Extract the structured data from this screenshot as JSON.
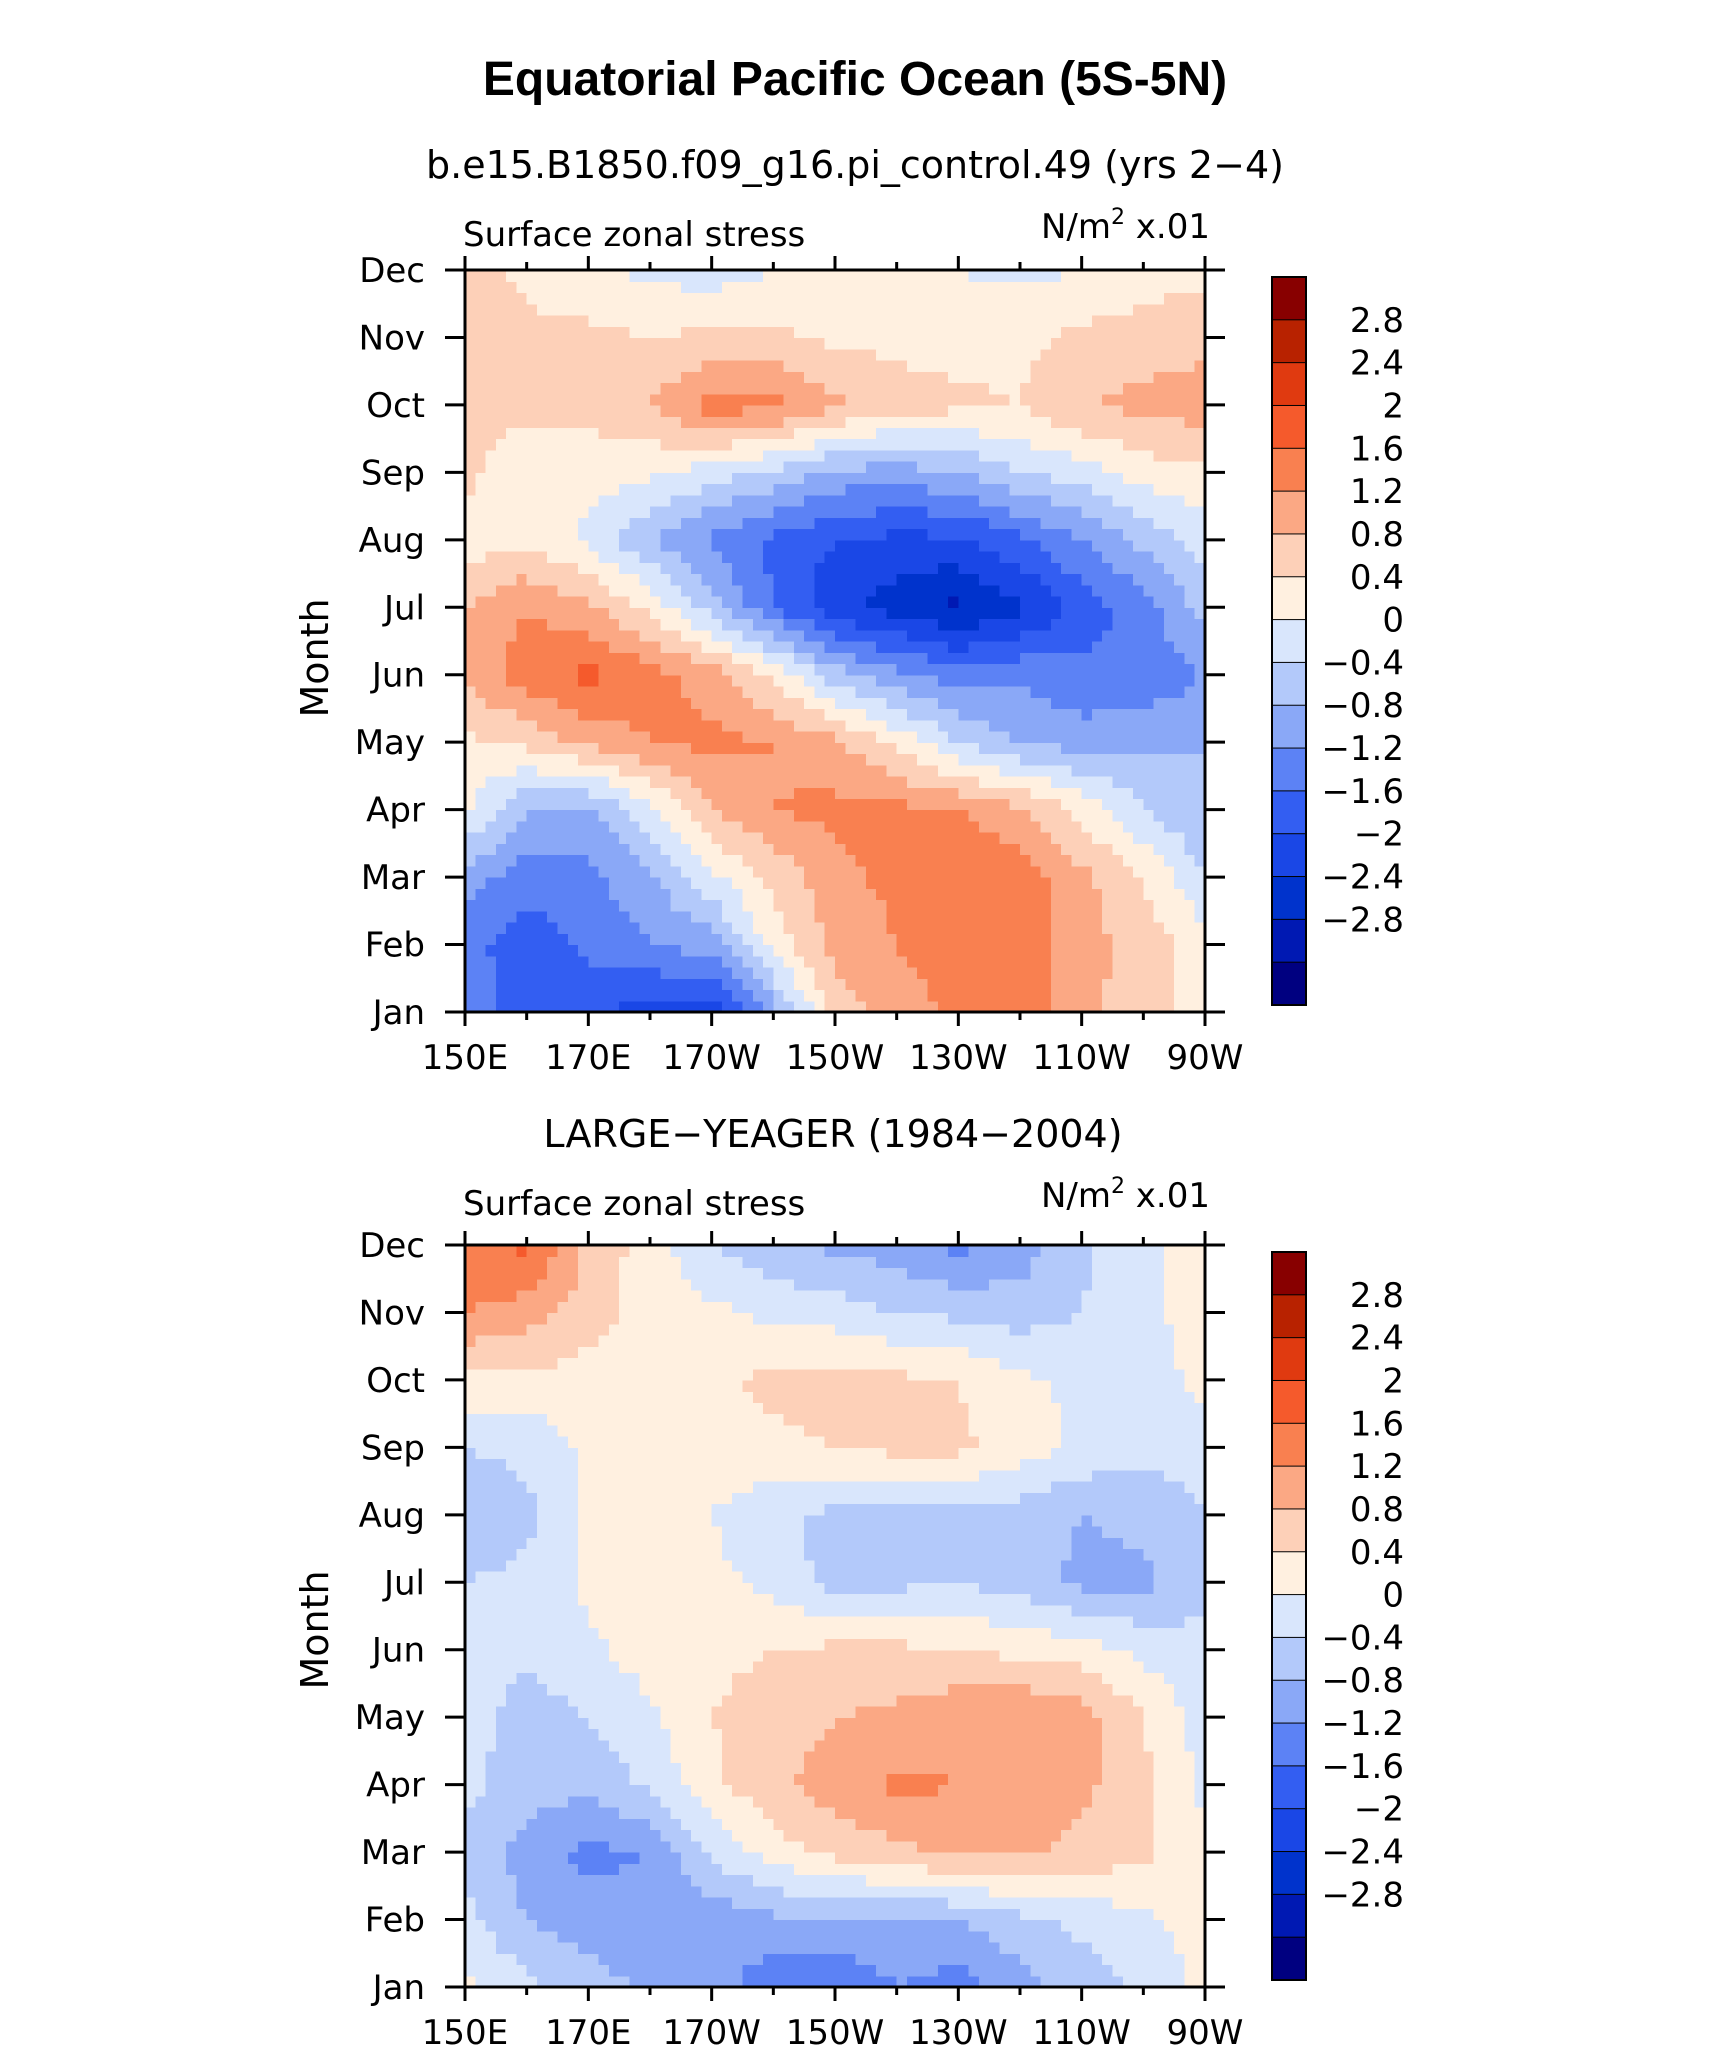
{
  "figure_title": "Equatorial Pacific Ocean (5S-5N)",
  "colorbar": {
    "colors": [
      "#000080",
      "#0019b3",
      "#0033cc",
      "#1a47e6",
      "#335ef2",
      "#5c82f5",
      "#8aa8f7",
      "#b3c9fa",
      "#d9e6fc",
      "#fff0e0",
      "#fdd0b8",
      "#fba884",
      "#f98050",
      "#f55a2c",
      "#e03a10",
      "#b82200",
      "#880000"
    ],
    "levels": [
      "2.8",
      "2.4",
      "2",
      "1.6",
      "1.2",
      "0.8",
      "0.4",
      "0",
      "−0.4",
      "−0.8",
      "−1.2",
      "−1.6",
      "−2",
      "−2.4",
      "−2.8"
    ]
  },
  "panels": [
    {
      "title": "b.e15.B1850.f09_g16.pi_control.49 (yrs 2−4)",
      "left_label": "Surface zonal stress",
      "right_label": "N/m",
      "right_label_sup": "2",
      "right_label_suffix": " x.01",
      "ylabel": "Month"
    },
    {
      "title": "LARGE−YEAGER (1984−2004)",
      "left_label": "Surface zonal stress",
      "right_label": "N/m",
      "right_label_sup": "2",
      "right_label_suffix": " x.01",
      "ylabel": "Month"
    }
  ],
  "chart_data": [
    {
      "type": "heatmap",
      "title": "b.e15.B1850.f09_g16.pi_control.49 (yrs 2−4)",
      "xlabel": "",
      "ylabel": "Month",
      "x_ticks": [
        "150E",
        "170E",
        "170W",
        "150W",
        "130W",
        "110W",
        "90W"
      ],
      "x": [
        150,
        160,
        170,
        180,
        190,
        200,
        210,
        220,
        230,
        240,
        250,
        260,
        270
      ],
      "y_ticks": [
        "Jan",
        "Feb",
        "Mar",
        "Apr",
        "May",
        "Jun",
        "Jul",
        "Aug",
        "Sep",
        "Oct",
        "Nov",
        "Dec"
      ],
      "y": [
        "Jan",
        "Feb",
        "Mar",
        "Apr",
        "May",
        "Jun",
        "Jul",
        "Aug",
        "Sep",
        "Oct",
        "Nov",
        "Dec"
      ],
      "z": [
        [
          -1.4,
          -1.8,
          -1.9,
          -2.2,
          -2.3,
          -1.0,
          0.6,
          1.0,
          1.3,
          1.4,
          0.9,
          0.6,
          0.2
        ],
        [
          -1.4,
          -1.9,
          -1.5,
          -1.2,
          -1.0,
          0.2,
          0.9,
          1.2,
          1.4,
          1.5,
          1.0,
          0.6,
          0.2
        ],
        [
          -1.0,
          -1.4,
          -1.3,
          -0.9,
          -0.1,
          0.5,
          1.1,
          1.3,
          1.6,
          1.4,
          0.9,
          0.4,
          -0.4
        ],
        [
          0.1,
          -0.8,
          -0.9,
          -0.1,
          0.8,
          1.2,
          1.3,
          1.3,
          1.2,
          0.9,
          0.3,
          -0.4,
          -0.8
        ],
        [
          0.3,
          0.5,
          0.9,
          1.2,
          1.3,
          1.2,
          0.9,
          0.3,
          -0.4,
          -0.8,
          -1.0,
          -0.9,
          -0.8
        ],
        [
          0.9,
          1.4,
          1.7,
          1.4,
          1.0,
          0.3,
          -0.6,
          -1.1,
          -1.4,
          -1.3,
          -1.5,
          -1.5,
          -1.2
        ],
        [
          0.8,
          1.2,
          0.9,
          0.3,
          -0.6,
          -1.6,
          -2.3,
          -2.6,
          -2.9,
          -2.5,
          -1.8,
          -1.4,
          -0.6
        ],
        [
          0.2,
          0.3,
          -0.1,
          -0.8,
          -1.3,
          -1.7,
          -2.0,
          -2.1,
          -2.1,
          -1.7,
          -1.2,
          -0.7,
          -0.2
        ],
        [
          0.5,
          0.1,
          0.2,
          0.1,
          -0.2,
          -0.5,
          -0.9,
          -1.0,
          -0.8,
          -0.4,
          -0.2,
          0.2,
          0.3
        ],
        [
          0.6,
          0.5,
          0.5,
          0.8,
          1.4,
          1.3,
          0.9,
          0.6,
          0.5,
          0.4,
          0.8,
          0.9,
          1.0
        ],
        [
          0.8,
          0.5,
          0.5,
          0.4,
          0.5,
          0.5,
          0.3,
          0.3,
          0.2,
          0.3,
          0.5,
          0.6,
          0.7
        ],
        [
          0.6,
          0.3,
          0.1,
          -0.1,
          -0.2,
          0.0,
          0.2,
          0.1,
          0.0,
          -0.1,
          0.0,
          0.2,
          0.3
        ]
      ],
      "zlim": [
        -3.2,
        3.2
      ],
      "levels": [
        -2.8,
        -2.4,
        -2,
        -1.6,
        -1.2,
        -0.8,
        -0.4,
        0,
        0.4,
        0.8,
        1.2,
        1.6,
        2,
        2.4,
        2.8
      ],
      "legend": "right colorbar"
    },
    {
      "type": "heatmap",
      "title": "LARGE−YEAGER (1984−2004)",
      "xlabel": "",
      "ylabel": "Month",
      "x_ticks": [
        "150E",
        "170E",
        "170W",
        "150W",
        "130W",
        "110W",
        "90W"
      ],
      "x": [
        150,
        160,
        170,
        180,
        190,
        200,
        210,
        220,
        230,
        240,
        250,
        260,
        270
      ],
      "y_ticks": [
        "Jan",
        "Feb",
        "Mar",
        "Apr",
        "May",
        "Jun",
        "Jul",
        "Aug",
        "Sep",
        "Oct",
        "Nov",
        "Dec"
      ],
      "y": [
        "Jan",
        "Feb",
        "Mar",
        "Apr",
        "May",
        "Jun",
        "Jul",
        "Aug",
        "Sep",
        "Oct",
        "Nov",
        "Dec"
      ],
      "z": [
        [
          0.1,
          -0.3,
          -0.6,
          -0.9,
          -1.0,
          -1.5,
          -1.6,
          -1.2,
          -1.4,
          -1.0,
          -0.6,
          -0.3,
          0.1
        ],
        [
          -0.3,
          -0.8,
          -1.0,
          -1.1,
          -1.1,
          -0.9,
          -0.8,
          -0.9,
          -0.8,
          -0.5,
          -0.3,
          -0.1,
          0.2
        ],
        [
          -0.5,
          -1.0,
          -1.3,
          -1.2,
          -0.3,
          0.2,
          0.5,
          0.7,
          0.9,
          0.9,
          0.7,
          0.5,
          0.1
        ],
        [
          -0.3,
          -0.6,
          -0.7,
          -0.3,
          0.3,
          0.7,
          1.0,
          1.3,
          1.2,
          1.0,
          0.9,
          0.5,
          -0.1
        ],
        [
          -0.2,
          -0.6,
          -0.4,
          -0.1,
          0.4,
          0.6,
          0.8,
          0.9,
          1.1,
          1.2,
          1.0,
          0.4,
          -0.2
        ],
        [
          -0.2,
          -0.3,
          -0.1,
          0.2,
          0.3,
          0.4,
          0.5,
          0.5,
          0.4,
          0.3,
          0.2,
          -0.1,
          -0.3
        ],
        [
          -0.4,
          -0.3,
          0.1,
          0.2,
          0.1,
          -0.1,
          -0.6,
          -0.5,
          -0.4,
          -0.6,
          -0.9,
          -0.9,
          -0.5
        ],
        [
          -0.7,
          -0.5,
          0.1,
          0.2,
          0.0,
          -0.3,
          -0.5,
          -0.6,
          -0.5,
          -0.6,
          -0.8,
          -0.7,
          -0.4
        ],
        [
          -0.4,
          -0.3,
          0.1,
          0.2,
          0.2,
          0.3,
          0.4,
          0.5,
          0.5,
          0.2,
          -0.1,
          -0.3,
          -0.2
        ],
        [
          0.3,
          0.3,
          0.2,
          0.2,
          0.3,
          0.5,
          0.6,
          0.5,
          0.4,
          0.1,
          -0.1,
          -0.2,
          0.1
        ],
        [
          1.2,
          1.0,
          0.6,
          0.2,
          0.1,
          -0.1,
          -0.2,
          -0.4,
          -0.5,
          -0.6,
          -0.4,
          -0.1,
          0.2
        ],
        [
          1.5,
          1.7,
          0.7,
          0.2,
          -0.4,
          -0.7,
          -0.9,
          -1.0,
          -1.3,
          -1.0,
          -0.5,
          -0.1,
          0.3
        ]
      ],
      "zlim": [
        -3.2,
        3.2
      ],
      "levels": [
        -2.8,
        -2.4,
        -2,
        -1.6,
        -1.2,
        -0.8,
        -0.4,
        0,
        0.4,
        0.8,
        1.2,
        1.6,
        2,
        2.4,
        2.8
      ],
      "legend": "right colorbar"
    }
  ]
}
